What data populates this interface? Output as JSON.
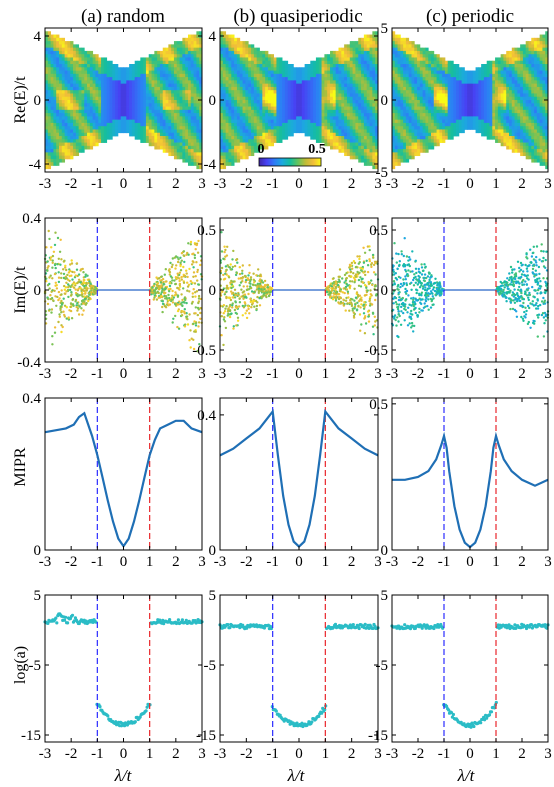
{
  "colors": {
    "colormap": [
      "#3e26a8",
      "#4743f4",
      "#2d7cf6",
      "#1ca9df",
      "#14be9f",
      "#62c45f",
      "#bfbc36",
      "#f2bd3a",
      "#f9fb15"
    ],
    "mipr_line": "#1f6fb5",
    "loga_line": "#2bbcc6",
    "critical_left": "#2b2bff",
    "critical_right": "#e8262b"
  },
  "colorbar": {
    "min_label": "0",
    "max_label": "0.5"
  },
  "chart_data": [
    {
      "id": "real-spectrum",
      "type": "heatmap",
      "ylabel": "Re(E)/t",
      "x_ticks": [
        "-3",
        "-2",
        "-1",
        "0",
        "1",
        "2",
        "3"
      ],
      "xlim": [
        -3,
        3
      ],
      "columns": [
        {
          "title": "(a) random",
          "ylim": [
            -4.5,
            4.5
          ],
          "y_ticks": [
            -4,
            0,
            4
          ],
          "y_tick_labels": [
            "-4",
            "0",
            "4"
          ]
        },
        {
          "title": "(b) quasiperiodic",
          "ylim": [
            -4.5,
            4.5
          ],
          "y_ticks": [
            -4,
            0,
            4
          ],
          "y_tick_labels": [
            "-4",
            "0",
            "4"
          ]
        },
        {
          "title": "(c) periodic",
          "ylim": [
            -5,
            5
          ],
          "y_ticks": [
            -5,
            0,
            5
          ],
          "y_tick_labels": [
            "-5",
            "0",
            "5"
          ]
        }
      ]
    },
    {
      "id": "imag-spectrum",
      "type": "scatter",
      "ylabel": "Im(E)/t",
      "x_ticks": [
        "-3",
        "-2",
        "-1",
        "0",
        "1",
        "2",
        "3"
      ],
      "xlim": [
        -3,
        3
      ],
      "columns": [
        {
          "ylim": [
            -0.4,
            0.4
          ],
          "y_ticks": [
            -0.4,
            0,
            0.4
          ],
          "y_tick_labels": [
            "-0.4",
            "0",
            "0.4"
          ],
          "spread": 0.4
        },
        {
          "ylim": [
            -0.6,
            0.6
          ],
          "y_ticks": [
            -0.5,
            0,
            0.5
          ],
          "y_tick_labels": [
            "-0.5",
            "0",
            "0.5"
          ],
          "spread": 0.5
        },
        {
          "ylim": [
            -0.6,
            0.6
          ],
          "y_ticks": [
            -0.5,
            0,
            0.5
          ],
          "y_tick_labels": [
            "-0.5",
            "0",
            "0.5"
          ],
          "spread": 0.55
        }
      ],
      "critical_lines": [
        -1,
        1
      ]
    },
    {
      "id": "mipr",
      "type": "line",
      "ylabel": "MIPR",
      "x_ticks": [
        "-3",
        "-2",
        "-1",
        "0",
        "1",
        "2",
        "3"
      ],
      "xlim": [
        -3,
        3
      ],
      "critical_lines": [
        -1,
        1
      ],
      "columns": [
        {
          "ylim": [
            0,
            0.4
          ],
          "y_ticks": [
            0,
            0.4
          ],
          "y_tick_labels": [
            "0",
            "0.4"
          ],
          "x": [
            -3,
            -2.6,
            -2.2,
            -1.9,
            -1.7,
            -1.5,
            -1.35,
            -1.2,
            -1.0,
            -0.8,
            -0.6,
            -0.4,
            -0.2,
            0,
            0.2,
            0.4,
            0.6,
            0.8,
            1.0,
            1.2,
            1.4,
            1.7,
            2.0,
            2.3,
            2.6,
            3.0
          ],
          "y": [
            0.31,
            0.315,
            0.32,
            0.33,
            0.35,
            0.36,
            0.33,
            0.3,
            0.25,
            0.19,
            0.13,
            0.075,
            0.03,
            0.01,
            0.03,
            0.075,
            0.13,
            0.19,
            0.25,
            0.29,
            0.32,
            0.33,
            0.34,
            0.34,
            0.32,
            0.31
          ]
        },
        {
          "ylim": [
            0,
            0.45
          ],
          "y_ticks": [
            0,
            0.4
          ],
          "y_tick_labels": [
            "0",
            "0.4"
          ],
          "x": [
            -3,
            -2.5,
            -2.0,
            -1.5,
            -1.2,
            -1.0,
            -0.8,
            -0.6,
            -0.4,
            -0.2,
            0,
            0.2,
            0.4,
            0.6,
            0.8,
            1.0,
            1.2,
            1.5,
            2.0,
            2.5,
            3.0
          ],
          "y": [
            0.28,
            0.3,
            0.33,
            0.36,
            0.39,
            0.41,
            0.28,
            0.16,
            0.075,
            0.025,
            0.01,
            0.025,
            0.075,
            0.16,
            0.28,
            0.41,
            0.39,
            0.36,
            0.33,
            0.3,
            0.28
          ]
        },
        {
          "ylim": [
            0,
            0.52
          ],
          "y_ticks": [
            0,
            0.5
          ],
          "y_tick_labels": [
            "0",
            "0.5"
          ],
          "x": [
            -3,
            -2.5,
            -2.0,
            -1.6,
            -1.3,
            -1.1,
            -1.0,
            -0.9,
            -0.8,
            -0.6,
            -0.4,
            -0.2,
            0,
            0.2,
            0.4,
            0.6,
            0.8,
            0.9,
            1.0,
            1.1,
            1.3,
            1.6,
            2.0,
            2.5,
            3.0
          ],
          "y": [
            0.24,
            0.24,
            0.25,
            0.27,
            0.31,
            0.36,
            0.39,
            0.35,
            0.27,
            0.15,
            0.07,
            0.025,
            0.01,
            0.025,
            0.07,
            0.15,
            0.27,
            0.35,
            0.39,
            0.36,
            0.31,
            0.27,
            0.24,
            0.22,
            0.24
          ]
        }
      ]
    },
    {
      "id": "log-a",
      "type": "scatter",
      "ylabel": "log(a)",
      "xlabel": "λ/t",
      "x_ticks": [
        "-3",
        "-2",
        "-1",
        "0",
        "1",
        "2",
        "3"
      ],
      "xlim": [
        -3,
        3
      ],
      "ylim": [
        -16,
        5
      ],
      "y_ticks": [
        5,
        -5,
        -15
      ],
      "y_tick_labels": [
        "5",
        "-5",
        "-15"
      ],
      "critical_lines": [
        -1,
        1
      ],
      "columns": [
        {
          "outer_level": 1.2,
          "outer_bump": 1.0,
          "center_min": -13.5,
          "edge_value": -10.5
        },
        {
          "outer_level": 0.5,
          "outer_bump": 0.0,
          "center_min": -13.6,
          "edge_value": -11.0
        },
        {
          "outer_level": 0.5,
          "outer_bump": 0.0,
          "center_min": -13.6,
          "edge_value": -10.5
        }
      ]
    }
  ]
}
